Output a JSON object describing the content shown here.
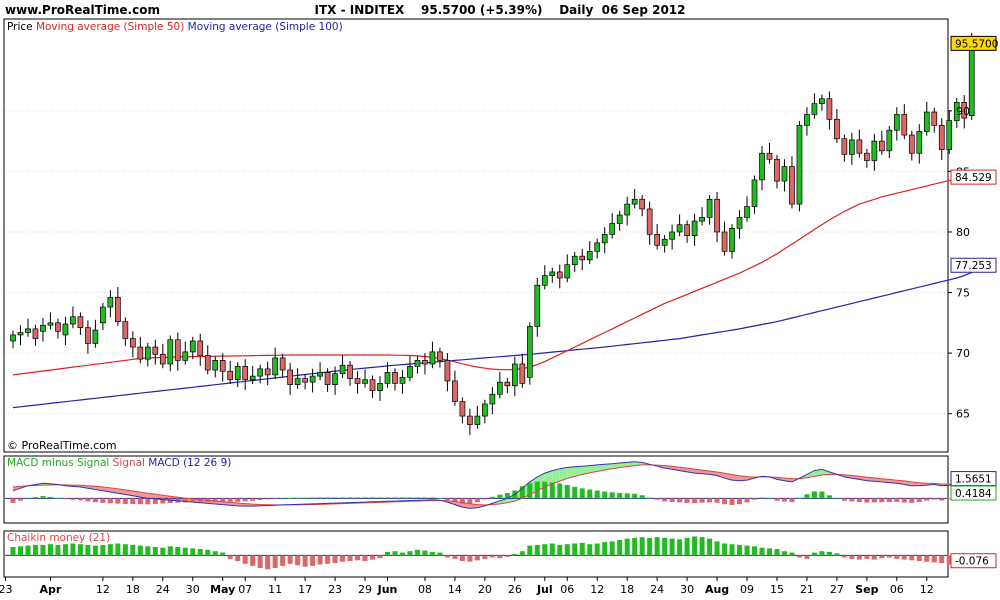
{
  "header": {
    "site": "www.ProRealTime.com",
    "title": "ITX - INDITEX    95.5700 (+5.39%)    Daily  06 Sep 2012"
  },
  "watermark": "© ProRealTime.com",
  "colors": {
    "up": "#22bb22",
    "down": "#dd6666",
    "ma50": "#dd2222",
    "ma100": "#2222aa",
    "hist_pos": "#22bb22",
    "hist_neg": "#dd6666",
    "macd_line": "#3333bb",
    "macd_fill_green": "#99ee99",
    "macd_fill_red": "#ee9999",
    "grid": "#d8d8d8",
    "last_label_bg": "#ffd700"
  },
  "chart_data": [
    {
      "type": "candlestick",
      "legend": [
        {
          "text": "Price",
          "color": "#000000"
        },
        {
          "text": "Moving average (Simple 50)",
          "color": "#dd2222"
        },
        {
          "text": "Moving average (Simple 100)",
          "color": "#2222aa"
        }
      ],
      "ylim": [
        62,
        97.5
      ],
      "yticks": [
        65,
        70,
        75,
        80,
        85,
        90
      ],
      "last_labels": [
        {
          "value": 95.57,
          "text": "95.5700",
          "style": "gold"
        },
        {
          "value": 84.529,
          "text": "84.529",
          "style": "red"
        },
        {
          "value": 77.253,
          "text": "77.253",
          "style": "blue"
        }
      ],
      "close": [
        71.5,
        71.7,
        72.0,
        71.2,
        72.3,
        72.5,
        71.8,
        72.4,
        73.0,
        72.1,
        70.8,
        71.9,
        73.8,
        74.6,
        72.6,
        71.2,
        70.5,
        69.5,
        70.5,
        69.9,
        69.1,
        71.1,
        69.4,
        70.1,
        71.0,
        69.8,
        68.6,
        69.4,
        68.5,
        67.8,
        68.9,
        67.8,
        68.1,
        68.7,
        68.2,
        69.6,
        68.6,
        67.4,
        67.9,
        67.6,
        68.1,
        68.4,
        67.4,
        68.3,
        69.0,
        67.9,
        67.5,
        67.8,
        66.9,
        67.5,
        68.4,
        67.5,
        68.0,
        68.9,
        69.4,
        69.1,
        70.1,
        69.4,
        67.7,
        66.0,
        64.8,
        64.1,
        64.8,
        65.8,
        66.6,
        67.6,
        67.3,
        69.1,
        67.5,
        72.2,
        75.6,
        76.4,
        76.7,
        76.2,
        77.3,
        78.0,
        77.7,
        78.4,
        79.1,
        79.8,
        80.7,
        81.4,
        82.3,
        82.7,
        81.9,
        79.8,
        78.9,
        79.4,
        80.0,
        80.6,
        79.7,
        80.9,
        81.2,
        82.7,
        80.0,
        78.4,
        80.3,
        81.2,
        82.1,
        84.3,
        86.5,
        86.0,
        84.2,
        85.4,
        82.3,
        88.8,
        89.7,
        90.6,
        91.0,
        89.3,
        87.7,
        86.4,
        87.6,
        86.5,
        85.9,
        87.5,
        86.7,
        88.4,
        89.7,
        88.0,
        86.5,
        88.3,
        89.9,
        88.8,
        86.8,
        89.2,
        90.7,
        89.4,
        95.57
      ],
      "open": [
        71.0,
        71.5,
        71.7,
        72.0,
        71.8,
        72.3,
        72.5,
        71.5,
        72.4,
        73.0,
        72.1,
        70.8,
        72.5,
        73.8,
        74.6,
        72.6,
        71.2,
        70.5,
        69.5,
        70.5,
        69.9,
        69.1,
        71.1,
        69.4,
        70.1,
        71.0,
        69.8,
        68.6,
        69.4,
        68.5,
        67.8,
        68.9,
        67.8,
        68.1,
        68.7,
        68.2,
        69.6,
        68.6,
        67.4,
        67.9,
        67.6,
        68.1,
        68.4,
        67.4,
        68.3,
        69.0,
        67.9,
        67.5,
        67.8,
        66.9,
        67.5,
        68.4,
        67.5,
        68.0,
        68.9,
        69.4,
        69.1,
        70.1,
        69.4,
        67.7,
        66.0,
        64.8,
        64.1,
        64.8,
        65.8,
        66.6,
        67.6,
        67.3,
        69.1,
        68.0,
        72.2,
        75.6,
        76.4,
        76.7,
        76.2,
        77.3,
        78.0,
        77.7,
        78.4,
        79.1,
        79.8,
        80.7,
        81.4,
        82.3,
        82.7,
        81.9,
        79.8,
        78.9,
        79.4,
        80.0,
        80.6,
        79.7,
        80.9,
        81.2,
        82.7,
        80.0,
        78.4,
        80.3,
        81.2,
        82.1,
        84.3,
        86.5,
        86.0,
        84.2,
        85.4,
        82.3,
        88.8,
        89.7,
        90.6,
        91.0,
        89.3,
        87.7,
        86.4,
        87.6,
        86.5,
        85.9,
        87.5,
        86.7,
        88.4,
        89.7,
        88.0,
        86.5,
        88.3,
        89.9,
        88.8,
        86.8,
        89.2,
        90.7,
        89.6
      ],
      "ma50": [
        68.2,
        68.28,
        68.36,
        68.44,
        68.52,
        68.6,
        68.68,
        68.76,
        68.84,
        68.92,
        69.0,
        69.08,
        69.16,
        69.24,
        69.32,
        69.4,
        69.48,
        69.56,
        69.6,
        69.62,
        69.64,
        69.66,
        69.68,
        69.7,
        69.71,
        69.72,
        69.73,
        69.74,
        69.75,
        69.76,
        69.77,
        69.78,
        69.79,
        69.8,
        69.81,
        69.82,
        69.83,
        69.84,
        69.84,
        69.84,
        69.84,
        69.84,
        69.84,
        69.84,
        69.84,
        69.84,
        69.84,
        69.84,
        69.84,
        69.84,
        69.84,
        69.83,
        69.82,
        69.8,
        69.77,
        69.72,
        69.65,
        69.55,
        69.42,
        69.28,
        69.12,
        68.97,
        68.85,
        68.75,
        68.68,
        68.64,
        68.63,
        68.65,
        68.72,
        68.85,
        69.05,
        69.3,
        69.6,
        69.9,
        70.2,
        70.5,
        70.8,
        71.1,
        71.4,
        71.7,
        72.0,
        72.3,
        72.6,
        72.9,
        73.2,
        73.5,
        73.8,
        74.1,
        74.35,
        74.6,
        74.85,
        75.1,
        75.35,
        75.6,
        75.85,
        76.1,
        76.35,
        76.6,
        76.9,
        77.2,
        77.5,
        77.85,
        78.2,
        78.6,
        79.0,
        79.4,
        79.8,
        80.2,
        80.6,
        81.0,
        81.35,
        81.7,
        82.0,
        82.3,
        82.5,
        82.7,
        82.9,
        83.05,
        83.2,
        83.35,
        83.5,
        83.65,
        83.8,
        83.95,
        84.1,
        84.25,
        84.4,
        84.529
      ],
      "ma100": [
        65.5,
        65.57,
        65.64,
        65.71,
        65.78,
        65.85,
        65.92,
        65.99,
        66.06,
        66.13,
        66.2,
        66.27,
        66.34,
        66.41,
        66.48,
        66.55,
        66.62,
        66.69,
        66.76,
        66.83,
        66.9,
        66.97,
        67.04,
        67.11,
        67.18,
        67.25,
        67.32,
        67.39,
        67.46,
        67.53,
        67.6,
        67.67,
        67.74,
        67.81,
        67.88,
        67.95,
        68.02,
        68.09,
        68.16,
        68.23,
        68.3,
        68.37,
        68.44,
        68.51,
        68.58,
        68.64,
        68.7,
        68.76,
        68.82,
        68.88,
        68.94,
        69.0,
        69.05,
        69.1,
        69.15,
        69.2,
        69.25,
        69.3,
        69.35,
        69.4,
        69.45,
        69.5,
        69.55,
        69.6,
        69.65,
        69.7,
        69.75,
        69.8,
        69.85,
        69.9,
        69.96,
        70.02,
        70.08,
        70.14,
        70.2,
        70.26,
        70.32,
        70.38,
        70.44,
        70.5,
        70.57,
        70.64,
        70.71,
        70.78,
        70.85,
        70.92,
        70.99,
        71.06,
        71.13,
        71.2,
        71.3,
        71.4,
        71.5,
        71.6,
        71.7,
        71.8,
        71.9,
        72.0,
        72.12,
        72.24,
        72.36,
        72.48,
        72.6,
        72.75,
        72.9,
        73.05,
        73.2,
        73.35,
        73.5,
        73.65,
        73.8,
        73.95,
        74.1,
        74.25,
        74.4,
        74.55,
        74.7,
        74.85,
        75.0,
        75.15,
        75.3,
        75.45,
        75.6,
        75.75,
        75.9,
        76.05,
        76.2,
        76.4,
        76.65,
        76.95,
        77.253
      ]
    },
    {
      "type": "macd",
      "legend": [
        {
          "text": "MACD minus Signal",
          "color": "#22aa22"
        },
        {
          "text": "Signal",
          "color": "#dd4444"
        },
        {
          "text": "MACD (12 26 9)",
          "color": "#2222aa"
        }
      ],
      "ylim": [
        -1.8,
        3.2
      ],
      "last_labels": [
        {
          "value": 1.5651,
          "text": "1.5651",
          "style": "blue"
        },
        {
          "value": 0.4184,
          "text": "0.4184",
          "style": "green"
        }
      ],
      "macd": [
        0.6,
        0.8,
        1.0,
        1.1,
        1.2,
        1.15,
        1.1,
        1.0,
        0.95,
        0.9,
        0.8,
        0.7,
        0.6,
        0.5,
        0.4,
        0.3,
        0.2,
        0.1,
        0.0,
        -0.05,
        -0.1,
        -0.15,
        -0.2,
        -0.25,
        -0.3,
        -0.35,
        -0.4,
        -0.45,
        -0.5,
        -0.55,
        -0.6,
        -0.62,
        -0.62,
        -0.6,
        -0.58,
        -0.55,
        -0.52,
        -0.5,
        -0.48,
        -0.46,
        -0.44,
        -0.42,
        -0.4,
        -0.38,
        -0.36,
        -0.34,
        -0.32,
        -0.3,
        -0.28,
        -0.26,
        -0.24,
        -0.22,
        -0.2,
        -0.18,
        -0.16,
        -0.14,
        -0.12,
        -0.15,
        -0.3,
        -0.5,
        -0.7,
        -0.8,
        -0.75,
        -0.6,
        -0.4,
        -0.2,
        0.0,
        0.3,
        0.8,
        1.3,
        1.7,
        2.0,
        2.2,
        2.35,
        2.45,
        2.5,
        2.55,
        2.6,
        2.65,
        2.7,
        2.75,
        2.8,
        2.85,
        2.9,
        2.85,
        2.7,
        2.55,
        2.4,
        2.3,
        2.2,
        2.1,
        2.0,
        1.95,
        1.9,
        1.8,
        1.6,
        1.45,
        1.4,
        1.45,
        1.6,
        1.75,
        1.7,
        1.5,
        1.4,
        1.3,
        1.6,
        1.9,
        2.2,
        2.3,
        2.1,
        1.9,
        1.7,
        1.6,
        1.5,
        1.4,
        1.35,
        1.3,
        1.25,
        1.2,
        1.1,
        1.0,
        1.0,
        1.05,
        1.1,
        1.0,
        1.05,
        1.2,
        1.3,
        1.5651
      ],
      "signal": [
        0.9,
        0.95,
        1.0,
        1.02,
        1.05,
        1.06,
        1.07,
        1.06,
        1.05,
        1.03,
        1.0,
        0.96,
        0.9,
        0.83,
        0.75,
        0.67,
        0.58,
        0.49,
        0.4,
        0.32,
        0.24,
        0.16,
        0.09,
        0.02,
        -0.04,
        -0.1,
        -0.16,
        -0.22,
        -0.27,
        -0.32,
        -0.37,
        -0.42,
        -0.46,
        -0.49,
        -0.51,
        -0.52,
        -0.52,
        -0.52,
        -0.51,
        -0.5,
        -0.49,
        -0.48,
        -0.46,
        -0.44,
        -0.42,
        -0.4,
        -0.38,
        -0.36,
        -0.34,
        -0.32,
        -0.3,
        -0.28,
        -0.26,
        -0.24,
        -0.22,
        -0.2,
        -0.18,
        -0.17,
        -0.19,
        -0.25,
        -0.34,
        -0.43,
        -0.5,
        -0.52,
        -0.5,
        -0.44,
        -0.35,
        -0.22,
        0.0,
        0.3,
        0.6,
        0.9,
        1.15,
        1.37,
        1.57,
        1.74,
        1.89,
        2.02,
        2.14,
        2.25,
        2.35,
        2.44,
        2.52,
        2.6,
        2.65,
        2.66,
        2.64,
        2.6,
        2.54,
        2.47,
        2.4,
        2.32,
        2.24,
        2.17,
        2.09,
        1.99,
        1.89,
        1.79,
        1.72,
        1.69,
        1.7,
        1.7,
        1.66,
        1.61,
        1.55,
        1.56,
        1.63,
        1.74,
        1.85,
        1.9,
        1.9,
        1.86,
        1.81,
        1.75,
        1.68,
        1.62,
        1.56,
        1.5,
        1.44,
        1.38,
        1.3,
        1.24,
        1.2,
        1.18,
        1.14,
        1.12,
        1.14,
        1.17,
        1.147
      ]
    },
    {
      "type": "histogram",
      "legend": [
        {
          "text": "Chaikin money (21)",
          "color": "#dd4444"
        }
      ],
      "ylim": [
        -0.28,
        0.32
      ],
      "last_labels": [
        {
          "value": -0.076,
          "text": "-0.076",
          "style": "red"
        }
      ],
      "values": [
        0.12,
        0.13,
        0.14,
        0.15,
        0.15,
        0.16,
        0.15,
        0.16,
        0.17,
        0.16,
        0.15,
        0.14,
        0.15,
        0.16,
        0.17,
        0.16,
        0.15,
        0.14,
        0.13,
        0.12,
        0.11,
        0.13,
        0.12,
        0.11,
        0.1,
        0.09,
        0.08,
        0.06,
        0.04,
        -0.05,
        -0.08,
        -0.12,
        -0.15,
        -0.18,
        -0.2,
        -0.18,
        -0.15,
        -0.12,
        -0.14,
        -0.16,
        -0.15,
        -0.13,
        -0.12,
        -0.11,
        -0.09,
        -0.08,
        -0.07,
        -0.08,
        -0.06,
        -0.04,
        0.05,
        0.06,
        0.04,
        0.06,
        0.08,
        0.07,
        0.05,
        0.04,
        -0.03,
        -0.05,
        -0.08,
        -0.09,
        -0.07,
        -0.05,
        -0.03,
        -0.04,
        -0.02,
        0.02,
        0.06,
        0.14,
        0.15,
        0.16,
        0.17,
        0.15,
        0.16,
        0.17,
        0.18,
        0.16,
        0.17,
        0.19,
        0.2,
        0.22,
        0.24,
        0.25,
        0.26,
        0.25,
        0.26,
        0.25,
        0.24,
        0.23,
        0.25,
        0.27,
        0.26,
        0.24,
        0.2,
        0.17,
        0.16,
        0.15,
        0.14,
        0.13,
        0.11,
        0.1,
        0.09,
        0.06,
        0.04,
        -0.03,
        -0.05,
        0.04,
        0.06,
        0.05,
        0.03,
        -0.03,
        -0.05,
        -0.06,
        -0.05,
        -0.06,
        -0.04,
        -0.03,
        -0.05,
        -0.06,
        -0.07,
        -0.08,
        -0.09,
        -0.1,
        -0.11,
        -0.13,
        -0.12,
        -0.08,
        -0.076
      ]
    }
  ],
  "xaxis": {
    "labels": [
      {
        "text": "23",
        "i": -1
      },
      {
        "text": "Apr",
        "i": 5
      },
      {
        "text": "12",
        "i": 12
      },
      {
        "text": "18",
        "i": 16
      },
      {
        "text": "24",
        "i": 20
      },
      {
        "text": "30",
        "i": 24
      },
      {
        "text": "May",
        "i": 28
      },
      {
        "text": "07",
        "i": 31
      },
      {
        "text": "11",
        "i": 35
      },
      {
        "text": "17",
        "i": 39
      },
      {
        "text": "23",
        "i": 43
      },
      {
        "text": "29",
        "i": 47
      },
      {
        "text": "Jun",
        "i": 50
      },
      {
        "text": "08",
        "i": 55
      },
      {
        "text": "14",
        "i": 59
      },
      {
        "text": "20",
        "i": 63
      },
      {
        "text": "26",
        "i": 67
      },
      {
        "text": "Jul",
        "i": 71
      },
      {
        "text": "06",
        "i": 74
      },
      {
        "text": "12",
        "i": 78
      },
      {
        "text": "18",
        "i": 82
      },
      {
        "text": "24",
        "i": 86
      },
      {
        "text": "30",
        "i": 90
      },
      {
        "text": "Aug",
        "i": 94
      },
      {
        "text": "09",
        "i": 98
      },
      {
        "text": "15",
        "i": 102
      },
      {
        "text": "21",
        "i": 106
      },
      {
        "text": "27",
        "i": 110
      },
      {
        "text": "Sep",
        "i": 114
      },
      {
        "text": "06",
        "i": 118
      },
      {
        "text": "12",
        "i": 122
      }
    ]
  }
}
